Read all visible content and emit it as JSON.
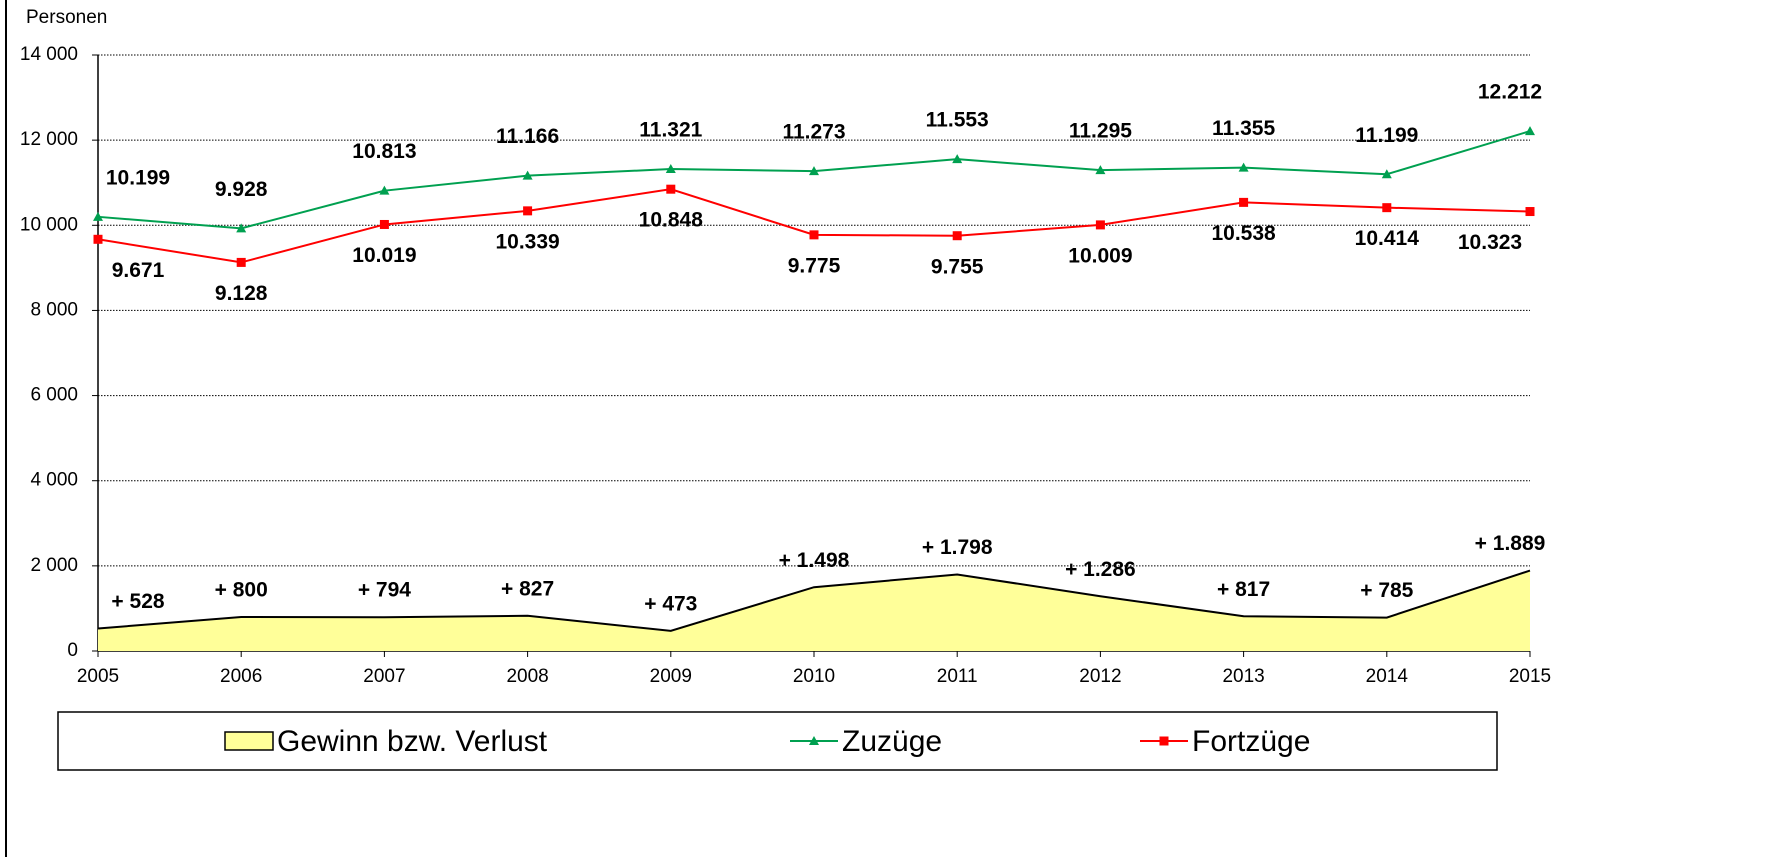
{
  "chart_data": {
    "type": "line",
    "y_label": "Personen",
    "categories": [
      "2005",
      "2006",
      "2007",
      "2008",
      "2009",
      "2010",
      "2011",
      "2012",
      "2013",
      "2014",
      "2015"
    ],
    "ylim": [
      0,
      14000
    ],
    "yticks": [
      0,
      {
        "value": 2000,
        "label": "2 000"
      },
      {
        "value": 4000,
        "label": "4 000"
      },
      {
        "value": 6000,
        "label": "6 000"
      },
      {
        "value": 8000,
        "label": "8 000"
      },
      {
        "value": 10000,
        "label": "10 000"
      },
      {
        "value": 12000,
        "label": "12 000"
      },
      {
        "value": 14000,
        "label": "14 000"
      }
    ],
    "grid": true,
    "series": [
      {
        "name": "Gewinn bzw. Verlust",
        "type": "area",
        "color": "#ffff99",
        "values": [
          528,
          800,
          794,
          827,
          473,
          1498,
          1798,
          1286,
          817,
          785,
          1889
        ],
        "value_labels": [
          "+ 528",
          "+ 800",
          "+ 794",
          "+ 827",
          "+ 473",
          "+ 1.498",
          "+ 1.798",
          "+ 1.286",
          "+ 817",
          "+ 785",
          "+ 1.889"
        ]
      },
      {
        "name": "Zuzüge",
        "type": "line",
        "marker": "triangle",
        "color": "#00a050",
        "values": [
          10199,
          9928,
          10813,
          11166,
          11321,
          11273,
          11553,
          11295,
          11355,
          11199,
          12212
        ],
        "value_labels": [
          "10.199",
          "9.928",
          "10.813",
          "11.166",
          "11.321",
          "11.273",
          "11.553",
          "11.295",
          "11.355",
          "11.199",
          "12.212"
        ]
      },
      {
        "name": "Fortzüge",
        "type": "line",
        "marker": "square",
        "color": "#ff0000",
        "values": [
          9671,
          9128,
          10019,
          10339,
          10848,
          9775,
          9755,
          10009,
          10538,
          10414,
          10323
        ],
        "value_labels": [
          "9.671",
          "9.128",
          "10.019",
          "10.339",
          "10.848",
          "9.775",
          "9.755",
          "10.009",
          "10.538",
          "10.414",
          "10.323"
        ]
      }
    ]
  }
}
